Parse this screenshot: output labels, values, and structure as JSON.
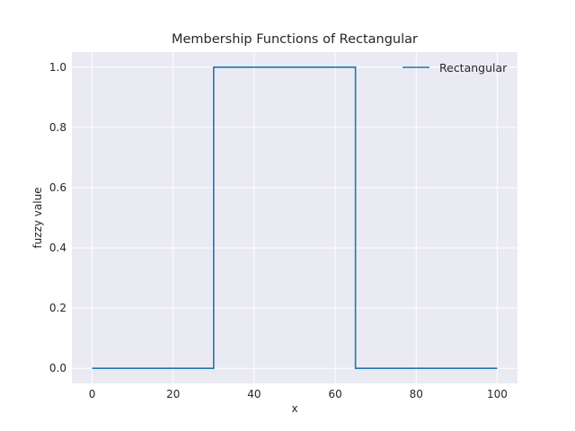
{
  "chart_data": {
    "type": "line",
    "title": "Membership Functions of Rectangular",
    "xlabel": "x",
    "ylabel": "fuzzy value",
    "xlim": [
      -5,
      105
    ],
    "ylim": [
      -0.05,
      1.05
    ],
    "xticks": [
      0,
      20,
      40,
      60,
      80,
      100
    ],
    "xtick_labels": [
      "0",
      "20",
      "40",
      "60",
      "80",
      "100"
    ],
    "yticks": [
      0.0,
      0.2,
      0.4,
      0.6,
      0.8,
      1.0
    ],
    "ytick_labels": [
      "0.0",
      "0.2",
      "0.4",
      "0.6",
      "0.8",
      "1.0"
    ],
    "grid": true,
    "legend_position": "top-right",
    "series": [
      {
        "name": "Rectangular",
        "color": "#1f77b4",
        "x": [
          0,
          30,
          30,
          65,
          65,
          100
        ],
        "y": [
          0,
          0,
          1,
          1,
          0,
          0
        ]
      }
    ],
    "colors": {
      "plot_background": "#eaeaf2",
      "grid": "#ffffff",
      "text": "#262626"
    }
  }
}
